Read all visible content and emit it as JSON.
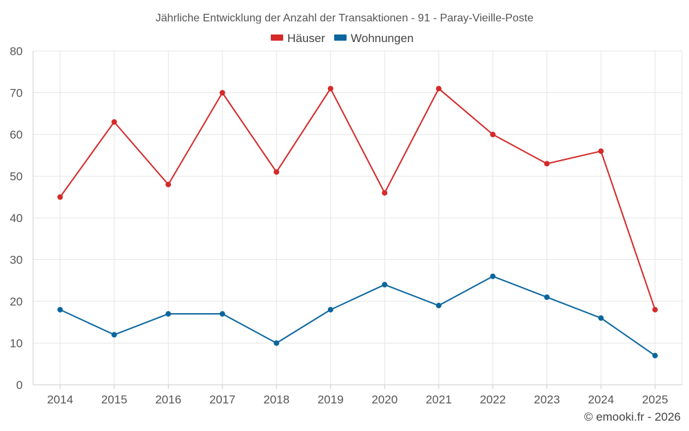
{
  "chart_data": {
    "type": "line",
    "title": "Jährliche Entwicklung der Anzahl der Transaktionen - 91 - Paray-Vieille-Poste",
    "categories": [
      "2014",
      "2015",
      "2016",
      "2017",
      "2018",
      "2019",
      "2020",
      "2021",
      "2022",
      "2023",
      "2024",
      "2025"
    ],
    "series": [
      {
        "name": "Häuser",
        "color": "#d42a2a",
        "values": [
          45,
          63,
          48,
          70,
          51,
          71,
          46,
          71,
          60,
          53,
          56,
          18
        ]
      },
      {
        "name": "Wohnungen",
        "color": "#0b669e",
        "values": [
          18,
          12,
          17,
          17,
          10,
          18,
          24,
          19,
          26,
          21,
          16,
          7
        ]
      }
    ],
    "ylim": [
      0,
      80
    ],
    "yticks": [
      "0",
      "10",
      "20",
      "30",
      "40",
      "50",
      "60",
      "70",
      "80"
    ],
    "xlabel": "",
    "ylabel": "",
    "grid": true,
    "legend_position": "top-center"
  },
  "credit": "© emooki.fr - 2026"
}
